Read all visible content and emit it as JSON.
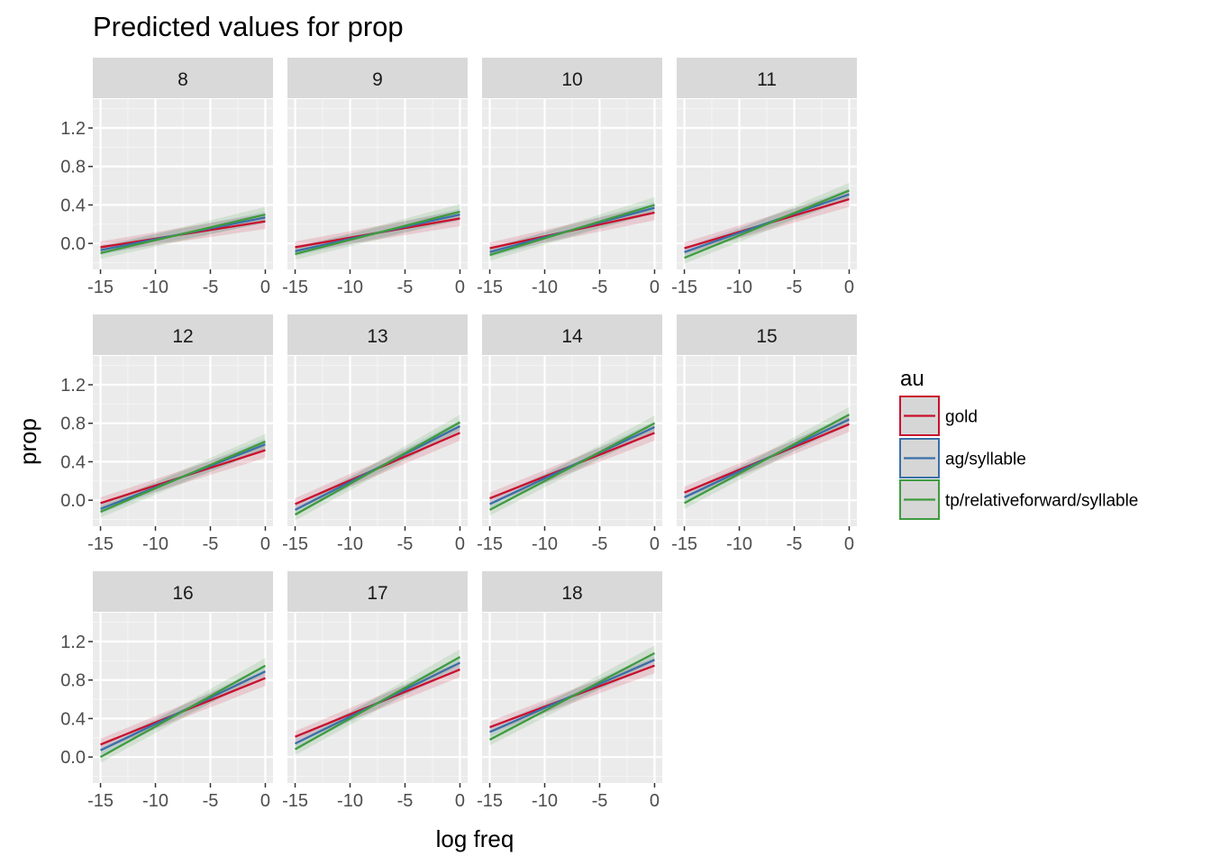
{
  "chart_data": {
    "type": "line",
    "title": "Predicted values for prop",
    "xlabel": "log freq",
    "ylabel": "prop",
    "xlim": [
      -15.7,
      0.7
    ],
    "ylim": [
      -0.27,
      1.5
    ],
    "x_ticks": [
      -15,
      -10,
      -5,
      0
    ],
    "x_tick_labels": [
      "-15",
      "-10",
      "-5",
      "0"
    ],
    "y_ticks": [
      0.0,
      0.4,
      0.8,
      1.2
    ],
    "y_tick_labels": [
      "0.0",
      "0.4",
      "0.8",
      "1.2"
    ],
    "grid": true,
    "legend": {
      "title": "au",
      "position": "right",
      "entries": [
        {
          "name": "gold",
          "color": "#c8102e"
        },
        {
          "name": "ag/syllable",
          "color": "#3a6fa8"
        },
        {
          "name": "tp/relativeforward/syllable",
          "color": "#3f9b3f"
        }
      ]
    },
    "facets": [
      {
        "label": "8",
        "series": [
          {
            "name": "gold",
            "x": [
              -15,
              0
            ],
            "y": [
              -0.04,
              0.23
            ],
            "ci_low": [
              -0.1,
              0.15
            ],
            "ci_high": [
              0.02,
              0.31
            ]
          },
          {
            "name": "ag/syllable",
            "x": [
              -15,
              0
            ],
            "y": [
              -0.07,
              0.27
            ],
            "ci_low": [
              -0.12,
              0.21
            ],
            "ci_high": [
              -0.02,
              0.33
            ]
          },
          {
            "name": "tp/relativeforward/syllable",
            "x": [
              -15,
              0
            ],
            "y": [
              -0.1,
              0.3
            ],
            "ci_low": [
              -0.16,
              0.22
            ],
            "ci_high": [
              -0.04,
              0.38
            ]
          }
        ]
      },
      {
        "label": "9",
        "series": [
          {
            "name": "gold",
            "x": [
              -15,
              0
            ],
            "y": [
              -0.04,
              0.26
            ],
            "ci_low": [
              -0.1,
              0.18
            ],
            "ci_high": [
              0.02,
              0.34
            ]
          },
          {
            "name": "ag/syllable",
            "x": [
              -15,
              0
            ],
            "y": [
              -0.08,
              0.3
            ],
            "ci_low": [
              -0.13,
              0.24
            ],
            "ci_high": [
              -0.03,
              0.36
            ]
          },
          {
            "name": "tp/relativeforward/syllable",
            "x": [
              -15,
              0
            ],
            "y": [
              -0.11,
              0.33
            ],
            "ci_low": [
              -0.17,
              0.25
            ],
            "ci_high": [
              -0.05,
              0.41
            ]
          }
        ]
      },
      {
        "label": "10",
        "series": [
          {
            "name": "gold",
            "x": [
              -15,
              0
            ],
            "y": [
              -0.05,
              0.32
            ],
            "ci_low": [
              -0.11,
              0.24
            ],
            "ci_high": [
              0.01,
              0.4
            ]
          },
          {
            "name": "ag/syllable",
            "x": [
              -15,
              0
            ],
            "y": [
              -0.09,
              0.37
            ],
            "ci_low": [
              -0.14,
              0.31
            ],
            "ci_high": [
              -0.04,
              0.43
            ]
          },
          {
            "name": "tp/relativeforward/syllable",
            "x": [
              -15,
              0
            ],
            "y": [
              -0.12,
              0.4
            ],
            "ci_low": [
              -0.18,
              0.32
            ],
            "ci_high": [
              -0.06,
              0.48
            ]
          }
        ]
      },
      {
        "label": "11",
        "series": [
          {
            "name": "gold",
            "x": [
              -15,
              0
            ],
            "y": [
              -0.05,
              0.46
            ],
            "ci_low": [
              -0.11,
              0.38
            ],
            "ci_high": [
              0.01,
              0.54
            ]
          },
          {
            "name": "ag/syllable",
            "x": [
              -15,
              0
            ],
            "y": [
              -0.09,
              0.51
            ],
            "ci_low": [
              -0.14,
              0.45
            ],
            "ci_high": [
              -0.04,
              0.57
            ]
          },
          {
            "name": "tp/relativeforward/syllable",
            "x": [
              -15,
              0
            ],
            "y": [
              -0.15,
              0.55
            ],
            "ci_low": [
              -0.21,
              0.47
            ],
            "ci_high": [
              -0.09,
              0.63
            ]
          }
        ]
      },
      {
        "label": "12",
        "series": [
          {
            "name": "gold",
            "x": [
              -15,
              0
            ],
            "y": [
              -0.03,
              0.52
            ],
            "ci_low": [
              -0.09,
              0.44
            ],
            "ci_high": [
              0.03,
              0.6
            ]
          },
          {
            "name": "ag/syllable",
            "x": [
              -15,
              0
            ],
            "y": [
              -0.09,
              0.58
            ],
            "ci_low": [
              -0.14,
              0.52
            ],
            "ci_high": [
              -0.04,
              0.64
            ]
          },
          {
            "name": "tp/relativeforward/syllable",
            "x": [
              -15,
              0
            ],
            "y": [
              -0.12,
              0.61
            ],
            "ci_low": [
              -0.18,
              0.53
            ],
            "ci_high": [
              -0.06,
              0.69
            ]
          }
        ]
      },
      {
        "label": "13",
        "series": [
          {
            "name": "gold",
            "x": [
              -15,
              0
            ],
            "y": [
              -0.04,
              0.7
            ],
            "ci_low": [
              -0.1,
              0.62
            ],
            "ci_high": [
              0.02,
              0.78
            ]
          },
          {
            "name": "ag/syllable",
            "x": [
              -15,
              0
            ],
            "y": [
              -0.1,
              0.77
            ],
            "ci_low": [
              -0.15,
              0.71
            ],
            "ci_high": [
              -0.05,
              0.83
            ]
          },
          {
            "name": "tp/relativeforward/syllable",
            "x": [
              -15,
              0
            ],
            "y": [
              -0.15,
              0.81
            ],
            "ci_low": [
              -0.21,
              0.73
            ],
            "ci_high": [
              -0.09,
              0.89
            ]
          }
        ]
      },
      {
        "label": "14",
        "series": [
          {
            "name": "gold",
            "x": [
              -15,
              0
            ],
            "y": [
              0.02,
              0.7
            ],
            "ci_low": [
              -0.04,
              0.62
            ],
            "ci_high": [
              0.08,
              0.78
            ]
          },
          {
            "name": "ag/syllable",
            "x": [
              -15,
              0
            ],
            "y": [
              -0.04,
              0.76
            ],
            "ci_low": [
              -0.09,
              0.7
            ],
            "ci_high": [
              0.01,
              0.82
            ]
          },
          {
            "name": "tp/relativeforward/syllable",
            "x": [
              -15,
              0
            ],
            "y": [
              -0.1,
              0.8
            ],
            "ci_low": [
              -0.16,
              0.72
            ],
            "ci_high": [
              -0.04,
              0.88
            ]
          }
        ]
      },
      {
        "label": "15",
        "series": [
          {
            "name": "gold",
            "x": [
              -15,
              0
            ],
            "y": [
              0.08,
              0.79
            ],
            "ci_low": [
              0.02,
              0.71
            ],
            "ci_high": [
              0.14,
              0.87
            ]
          },
          {
            "name": "ag/syllable",
            "x": [
              -15,
              0
            ],
            "y": [
              0.03,
              0.84
            ],
            "ci_low": [
              -0.02,
              0.78
            ],
            "ci_high": [
              0.08,
              0.9
            ]
          },
          {
            "name": "tp/relativeforward/syllable",
            "x": [
              -15,
              0
            ],
            "y": [
              -0.03,
              0.89
            ],
            "ci_low": [
              -0.09,
              0.81
            ],
            "ci_high": [
              0.03,
              0.97
            ]
          }
        ]
      },
      {
        "label": "16",
        "series": [
          {
            "name": "gold",
            "x": [
              -15,
              0
            ],
            "y": [
              0.13,
              0.82
            ],
            "ci_low": [
              0.07,
              0.74
            ],
            "ci_high": [
              0.19,
              0.9
            ]
          },
          {
            "name": "ag/syllable",
            "x": [
              -15,
              0
            ],
            "y": [
              0.07,
              0.89
            ],
            "ci_low": [
              0.02,
              0.83
            ],
            "ci_high": [
              0.12,
              0.95
            ]
          },
          {
            "name": "tp/relativeforward/syllable",
            "x": [
              -15,
              0
            ],
            "y": [
              0.0,
              0.95
            ],
            "ci_low": [
              -0.06,
              0.87
            ],
            "ci_high": [
              0.06,
              1.03
            ]
          }
        ]
      },
      {
        "label": "17",
        "series": [
          {
            "name": "gold",
            "x": [
              -15,
              0
            ],
            "y": [
              0.21,
              0.91
            ],
            "ci_low": [
              0.15,
              0.83
            ],
            "ci_high": [
              0.27,
              0.99
            ]
          },
          {
            "name": "ag/syllable",
            "x": [
              -15,
              0
            ],
            "y": [
              0.14,
              0.98
            ],
            "ci_low": [
              0.09,
              0.92
            ],
            "ci_high": [
              0.19,
              1.04
            ]
          },
          {
            "name": "tp/relativeforward/syllable",
            "x": [
              -15,
              0
            ],
            "y": [
              0.08,
              1.04
            ],
            "ci_low": [
              0.02,
              0.96
            ],
            "ci_high": [
              0.14,
              1.12
            ]
          }
        ]
      },
      {
        "label": "18",
        "series": [
          {
            "name": "gold",
            "x": [
              -15,
              0
            ],
            "y": [
              0.31,
              0.95
            ],
            "ci_low": [
              0.25,
              0.87
            ],
            "ci_high": [
              0.37,
              1.03
            ]
          },
          {
            "name": "ag/syllable",
            "x": [
              -15,
              0
            ],
            "y": [
              0.26,
              1.01
            ],
            "ci_low": [
              0.21,
              0.95
            ],
            "ci_high": [
              0.31,
              1.07
            ]
          },
          {
            "name": "tp/relativeforward/syllable",
            "x": [
              -15,
              0
            ],
            "y": [
              0.18,
              1.08
            ],
            "ci_low": [
              0.12,
              1.0
            ],
            "ci_high": [
              0.24,
              1.16
            ]
          }
        ]
      }
    ]
  }
}
